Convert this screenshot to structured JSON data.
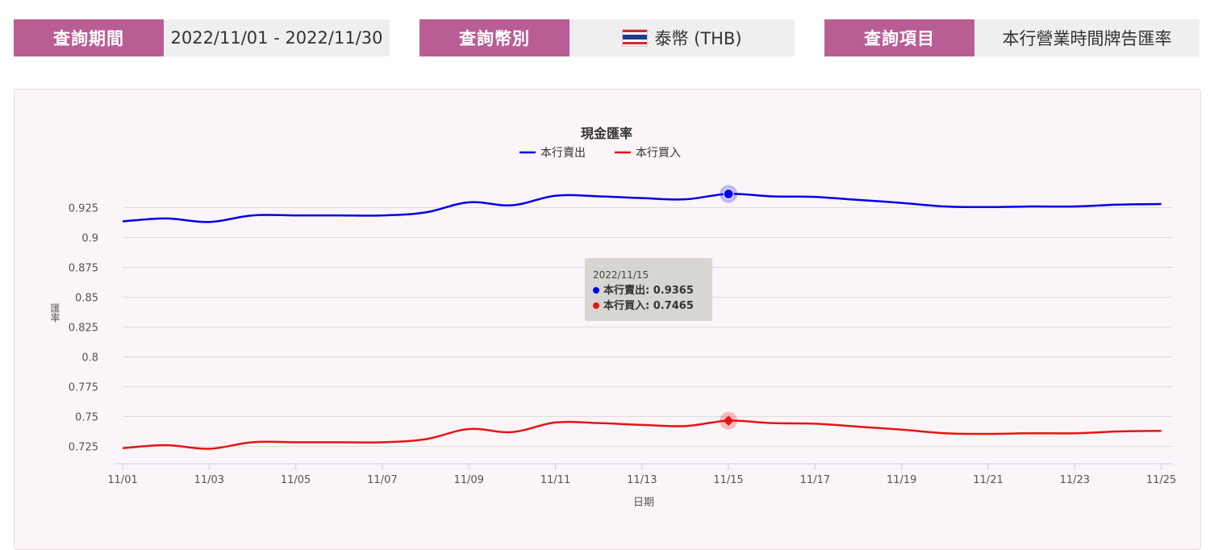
{
  "query": {
    "period": {
      "label": "查詢期間",
      "value": "2022/11/01 - 2022/11/30"
    },
    "currency": {
      "label": "查詢幣別",
      "value": "泰幣 (THB)",
      "flag_icon": "thailand-flag-icon"
    },
    "item": {
      "label": "查詢項目",
      "value": "本行營業時間牌告匯率"
    }
  },
  "colors": {
    "accent": "#b95e95",
    "sell": "#0000e6",
    "buy": "#e61414",
    "grid": "#dcdcdc"
  },
  "chart_data": {
    "type": "line",
    "title": "現金匯率",
    "xlabel": "日期",
    "ylabel": "匯率",
    "legend_position": "top-center",
    "grid": true,
    "ylim": [
      0.72,
      0.93
    ],
    "yticks": [
      "0.725",
      "0.75",
      "0.775",
      "0.8",
      "0.825",
      "0.85",
      "0.875",
      "0.9",
      "0.925"
    ],
    "x": [
      "11/01",
      "11/02",
      "11/03",
      "11/04",
      "11/05",
      "11/06",
      "11/07",
      "11/08",
      "11/09",
      "11/10",
      "11/11",
      "11/12",
      "11/13",
      "11/14",
      "11/15",
      "11/16",
      "11/17",
      "11/18",
      "11/19",
      "11/20",
      "11/21",
      "11/22",
      "11/23",
      "11/24",
      "11/25"
    ],
    "xticks": [
      "11/01",
      "11/03",
      "11/05",
      "11/07",
      "11/09",
      "11/11",
      "11/13",
      "11/15",
      "11/17",
      "11/19",
      "11/21",
      "11/23",
      "11/25"
    ],
    "series": [
      {
        "name": "本行賣出",
        "values": [
          0.9135,
          0.916,
          0.913,
          0.9185,
          0.9185,
          0.9185,
          0.9185,
          0.921,
          0.9295,
          0.927,
          0.935,
          0.9345,
          0.933,
          0.932,
          0.9365,
          0.9345,
          0.934,
          0.9315,
          0.929,
          0.926,
          0.9255,
          0.926,
          0.926,
          0.9275,
          0.928
        ]
      },
      {
        "name": "本行買入",
        "values": [
          0.7235,
          0.726,
          0.723,
          0.7285,
          0.7285,
          0.7285,
          0.7285,
          0.731,
          0.7395,
          0.737,
          0.745,
          0.7445,
          0.743,
          0.742,
          0.7465,
          0.7445,
          0.744,
          0.7415,
          0.739,
          0.736,
          0.7355,
          0.736,
          0.736,
          0.7375,
          0.738
        ]
      }
    ],
    "tooltip": {
      "date": "2022/11/15",
      "sell": "本行賣出: 0.9365",
      "buy": "本行買入: 0.7465"
    }
  }
}
